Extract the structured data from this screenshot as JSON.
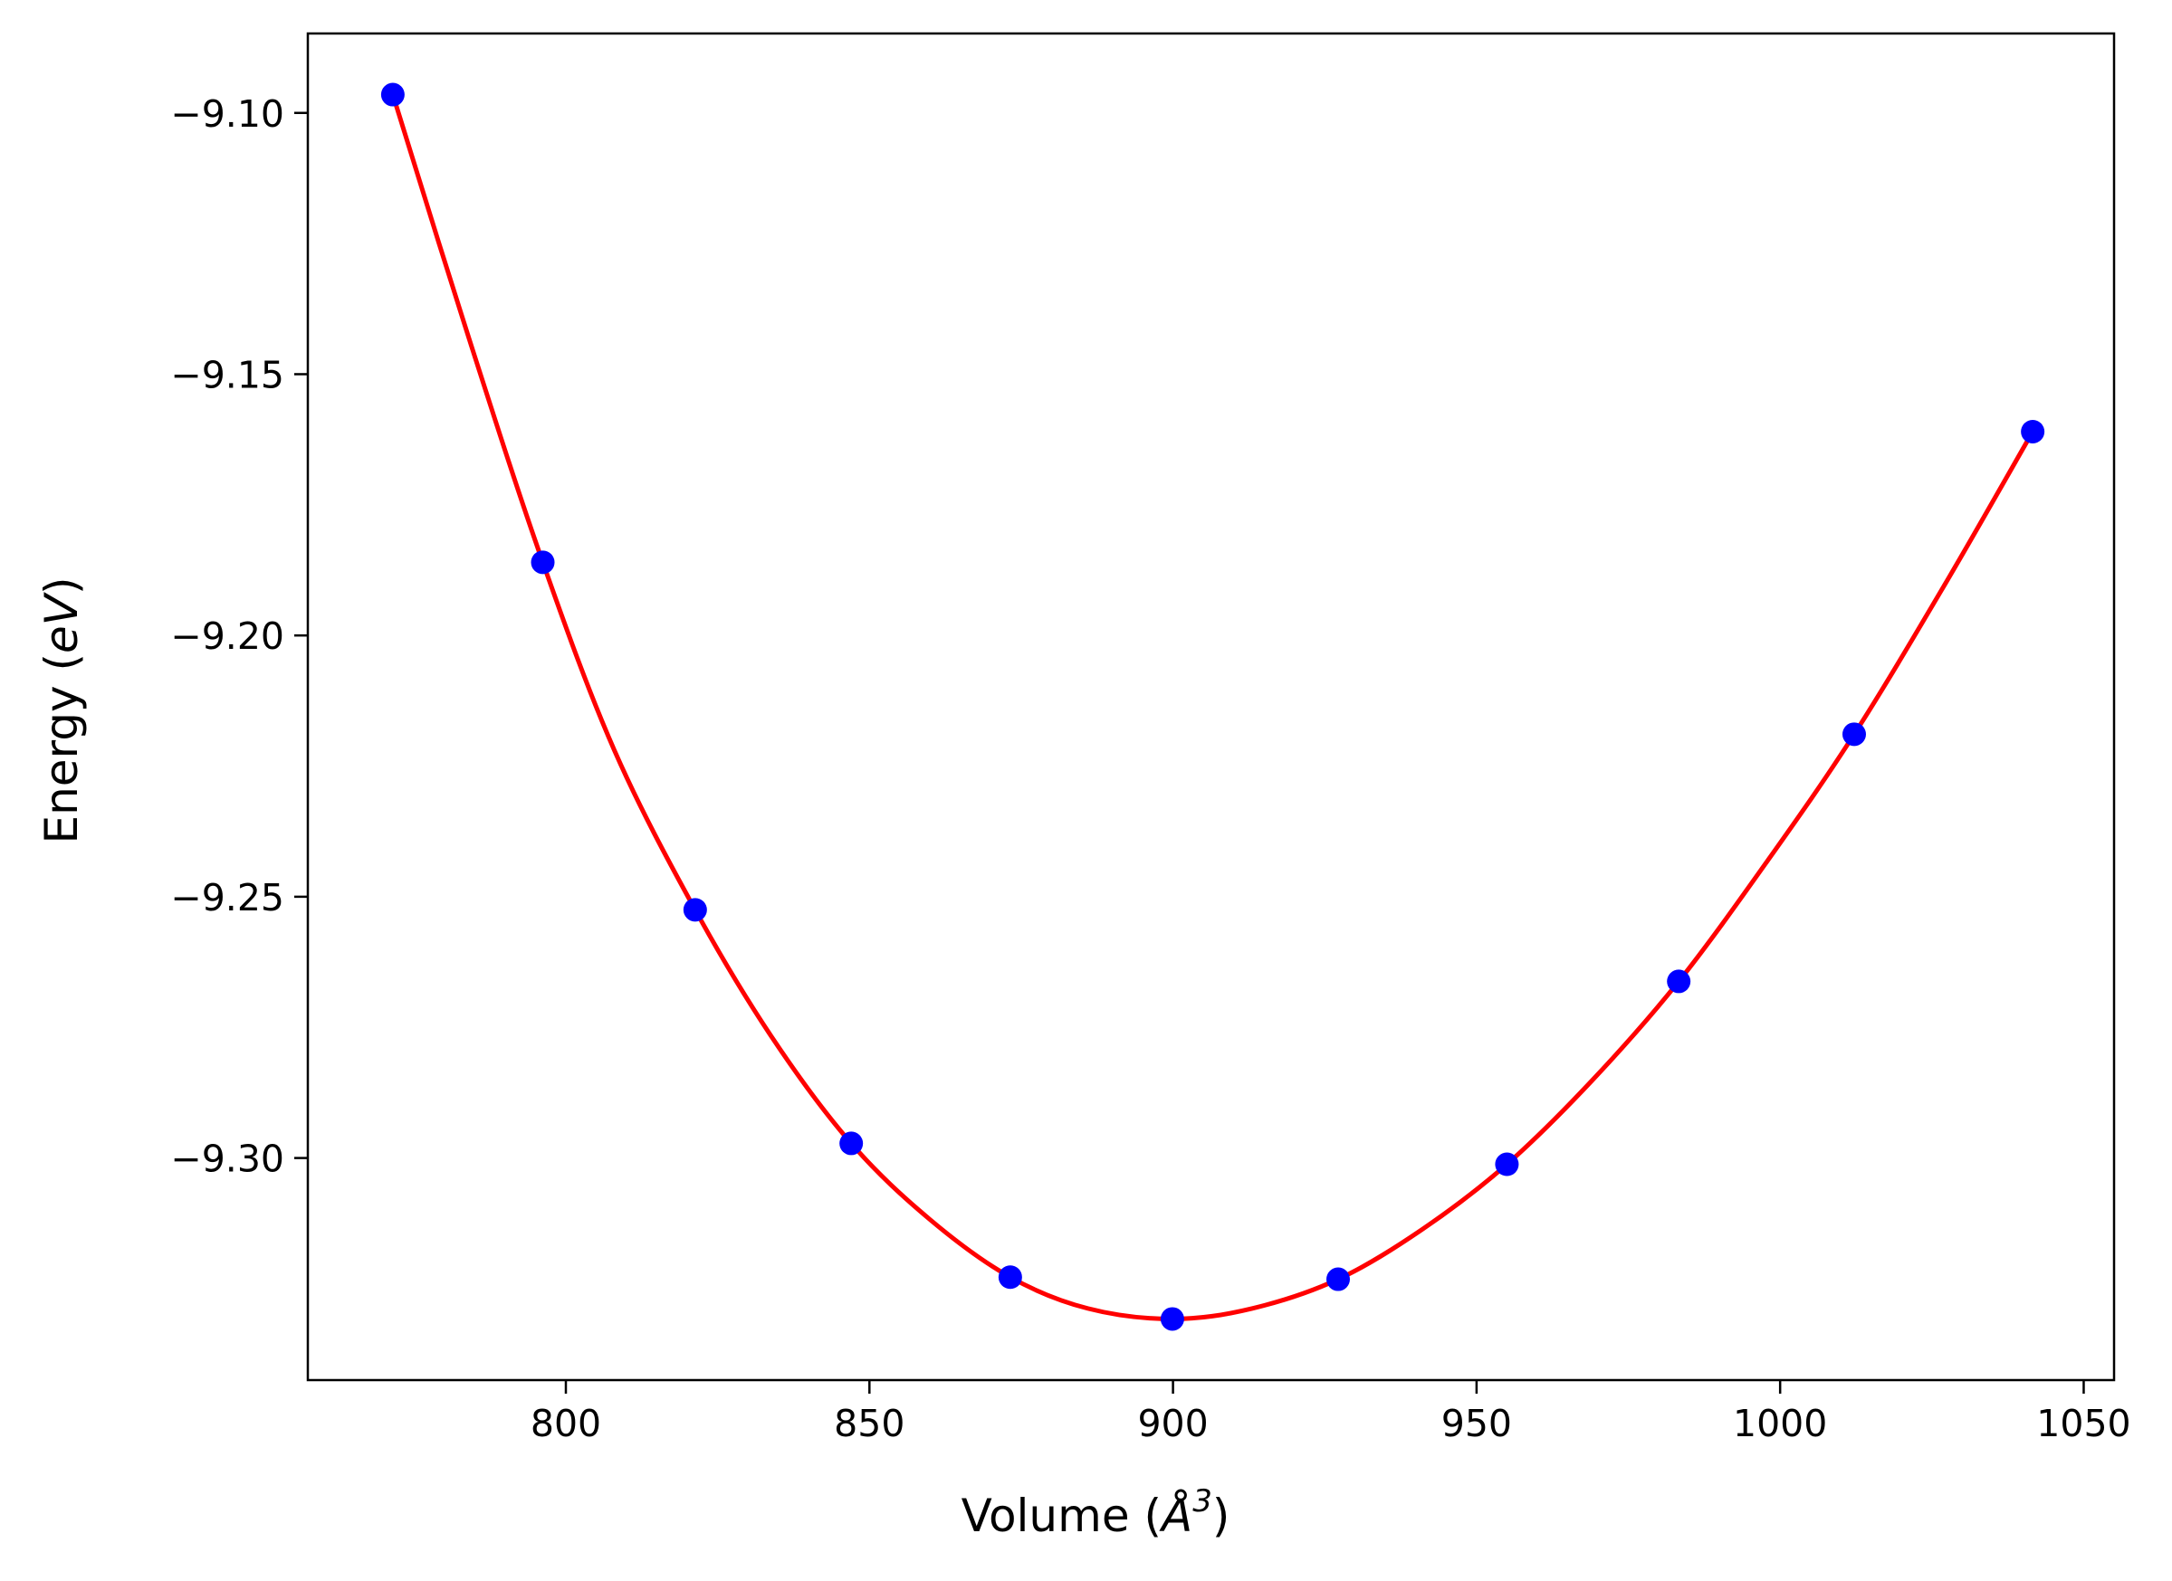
{
  "chart_data": {
    "type": "scatter",
    "title": "",
    "xlabel": {
      "prefix": "Volume (",
      "symbol": "Å",
      "superscript": "3",
      "suffix": ")"
    },
    "ylabel": {
      "prefix": "Energy (",
      "unit": "eV",
      "suffix": ")"
    },
    "xlim": [
      757.5,
      1055
    ],
    "ylim": [
      -9.3425,
      -9.0848
    ],
    "xticks": [
      800,
      850,
      900,
      950,
      1000,
      1050
    ],
    "xtick_labels": [
      "800",
      "850",
      "900",
      "950",
      "1000",
      "1050"
    ],
    "yticks": [
      -9.1,
      -9.15,
      -9.2,
      -9.25,
      -9.3
    ],
    "ytick_labels": [
      "−9.10",
      "−9.15",
      "−9.20",
      "−9.25",
      "−9.30"
    ],
    "grid": false,
    "series": [
      {
        "kind": "points",
        "color": "#0000ff",
        "x": [
          771.5,
          796.2,
          821.3,
          847.0,
          873.2,
          899.9,
          927.2,
          955.0,
          983.3,
          1012.2,
          1041.6
        ],
        "y": [
          -9.0965,
          -9.186,
          -9.2525,
          -9.2972,
          -9.3228,
          -9.3308,
          -9.3232,
          -9.3012,
          -9.2662,
          -9.2189,
          -9.161
        ]
      },
      {
        "kind": "fit-curve",
        "color": "#ff0000",
        "x": [
          771.5,
          784,
          796.2,
          808,
          821.3,
          834,
          847.0,
          860,
          873.2,
          886,
          899.9,
          913,
          927.2,
          941,
          955.0,
          969,
          983.3,
          998,
          1012.2,
          1027,
          1041.6
        ],
        "y": [
          -9.0965,
          -9.143,
          -9.186,
          -9.222,
          -9.2525,
          -9.277,
          -9.2972,
          -9.3118,
          -9.3228,
          -9.3288,
          -9.3308,
          -9.3288,
          -9.3232,
          -9.3137,
          -9.3012,
          -9.2852,
          -9.2662,
          -9.243,
          -9.2189,
          -9.1905,
          -9.161
        ]
      }
    ]
  }
}
